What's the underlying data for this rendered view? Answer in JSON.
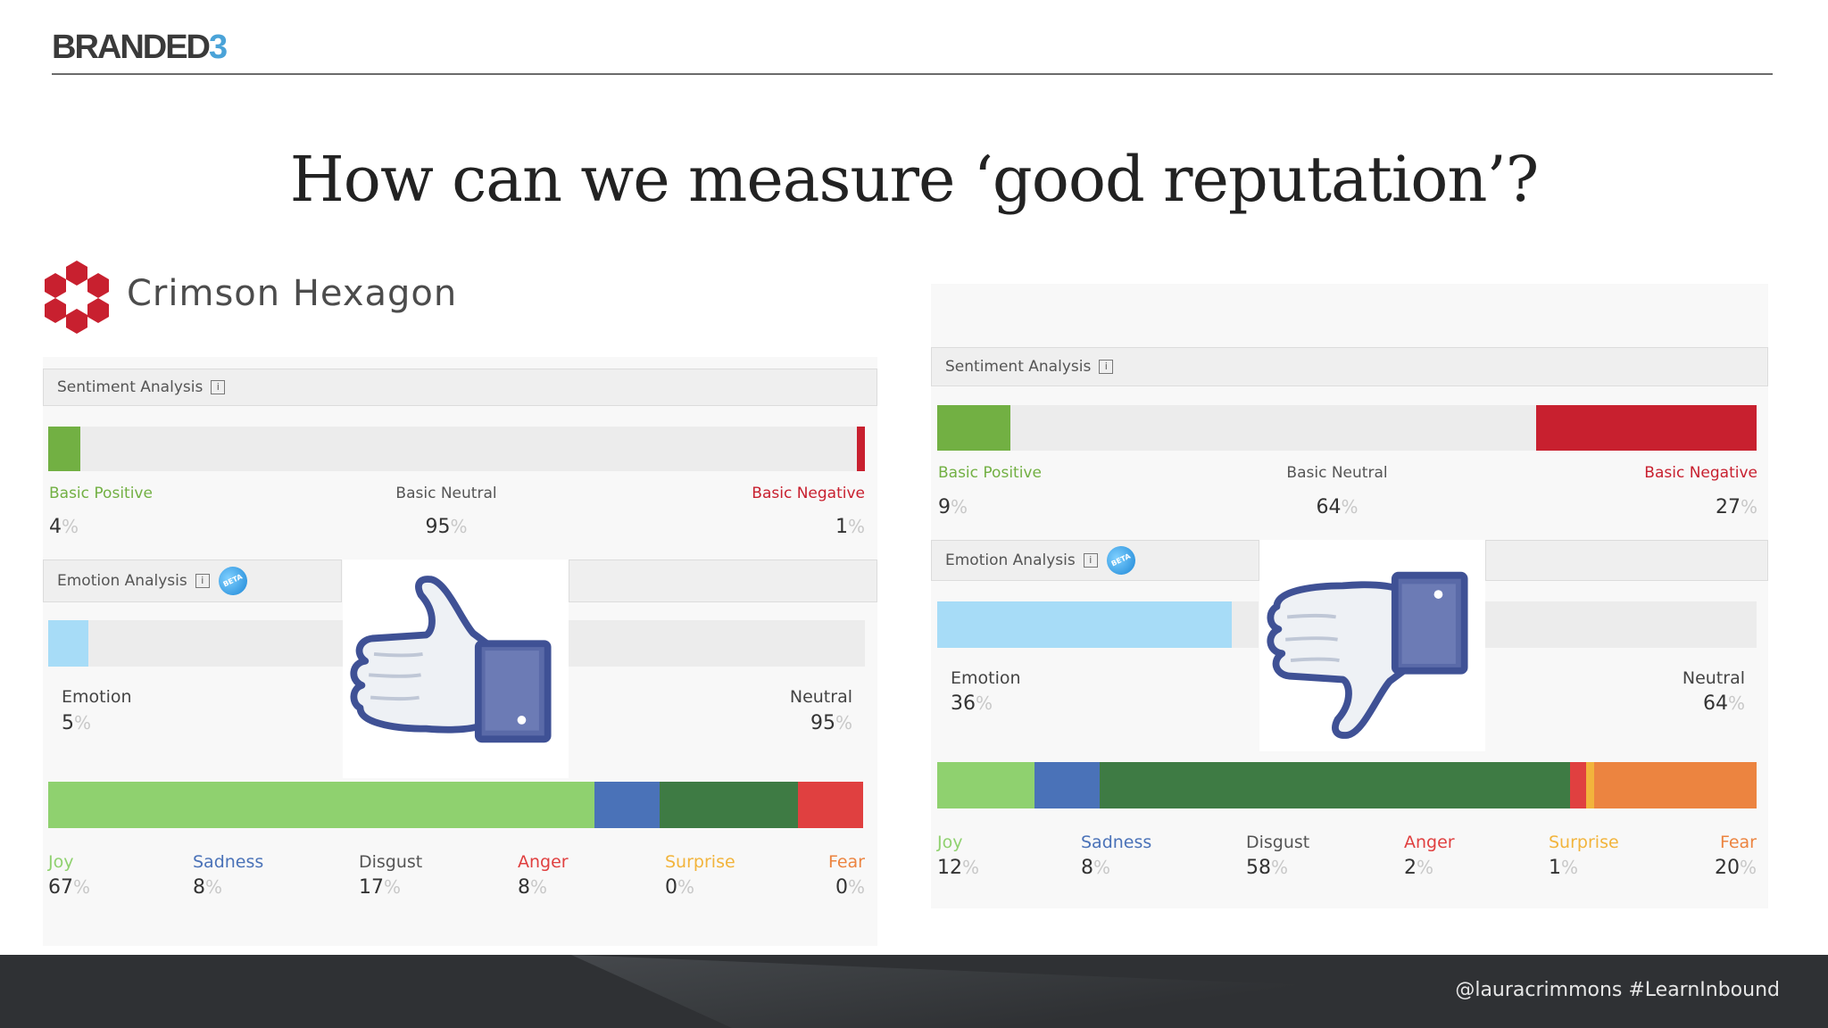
{
  "header": {
    "brand_main": "BRANDED",
    "brand_accent": "3"
  },
  "title": "How can we measure ‘good reputation’?",
  "logo": {
    "name": "Crimson Hexagon",
    "icon": "crimson-hexagon-logo-icon"
  },
  "left_panel": {
    "sentiment_title": "Sentiment Analysis",
    "sentiment": {
      "positive_label": "Basic Positive",
      "positive_value": "4",
      "neutral_label": "Basic Neutral",
      "neutral_value": "95",
      "negative_label": "Basic Negative",
      "negative_value": "1"
    },
    "emotion_title": "Emotion Analysis",
    "beta": "BETA",
    "emotion": {
      "emotion_label": "Emotion",
      "emotion_value": "5",
      "neutral_label": "Neutral",
      "neutral_value": "95"
    },
    "emotions": [
      {
        "label": "Joy",
        "value": "67"
      },
      {
        "label": "Sadness",
        "value": "8"
      },
      {
        "label": "Disgust",
        "value": "17"
      },
      {
        "label": "Anger",
        "value": "8"
      },
      {
        "label": "Surprise",
        "value": "0"
      },
      {
        "label": "Fear",
        "value": "0"
      }
    ],
    "thumb_icon": "thumbs-up-icon"
  },
  "right_panel": {
    "sentiment_title": "Sentiment Analysis",
    "sentiment": {
      "positive_label": "Basic Positive",
      "positive_value": "9",
      "neutral_label": "Basic Neutral",
      "neutral_value": "64",
      "negative_label": "Basic Negative",
      "negative_value": "27"
    },
    "emotion_title": "Emotion Analysis",
    "beta": "BETA",
    "emotion": {
      "emotion_label": "Emotion",
      "emotion_value": "36",
      "neutral_label": "Neutral",
      "neutral_value": "64"
    },
    "emotions": [
      {
        "label": "Joy",
        "value": "12"
      },
      {
        "label": "Sadness",
        "value": "8"
      },
      {
        "label": "Disgust",
        "value": "58"
      },
      {
        "label": "Anger",
        "value": "2"
      },
      {
        "label": "Surprise",
        "value": "1"
      },
      {
        "label": "Fear",
        "value": "20"
      }
    ],
    "thumb_icon": "thumbs-down-icon"
  },
  "percent_sign": "%",
  "colors": {
    "positive": "#72b043",
    "negative": "#c8202f",
    "neutral_track": "#ececec",
    "emotion_bar": "#a7dcf7",
    "joy": "#8fd16f",
    "sadness": "#4a72b8",
    "disgust": "#3e7b44",
    "anger": "#e04040",
    "surprise": "#f2b43c",
    "fear": "#ec8440",
    "thumb_blue": "#5a6aa8"
  },
  "footer": {
    "text": "@lauracrimmons  #LearnInbound"
  }
}
